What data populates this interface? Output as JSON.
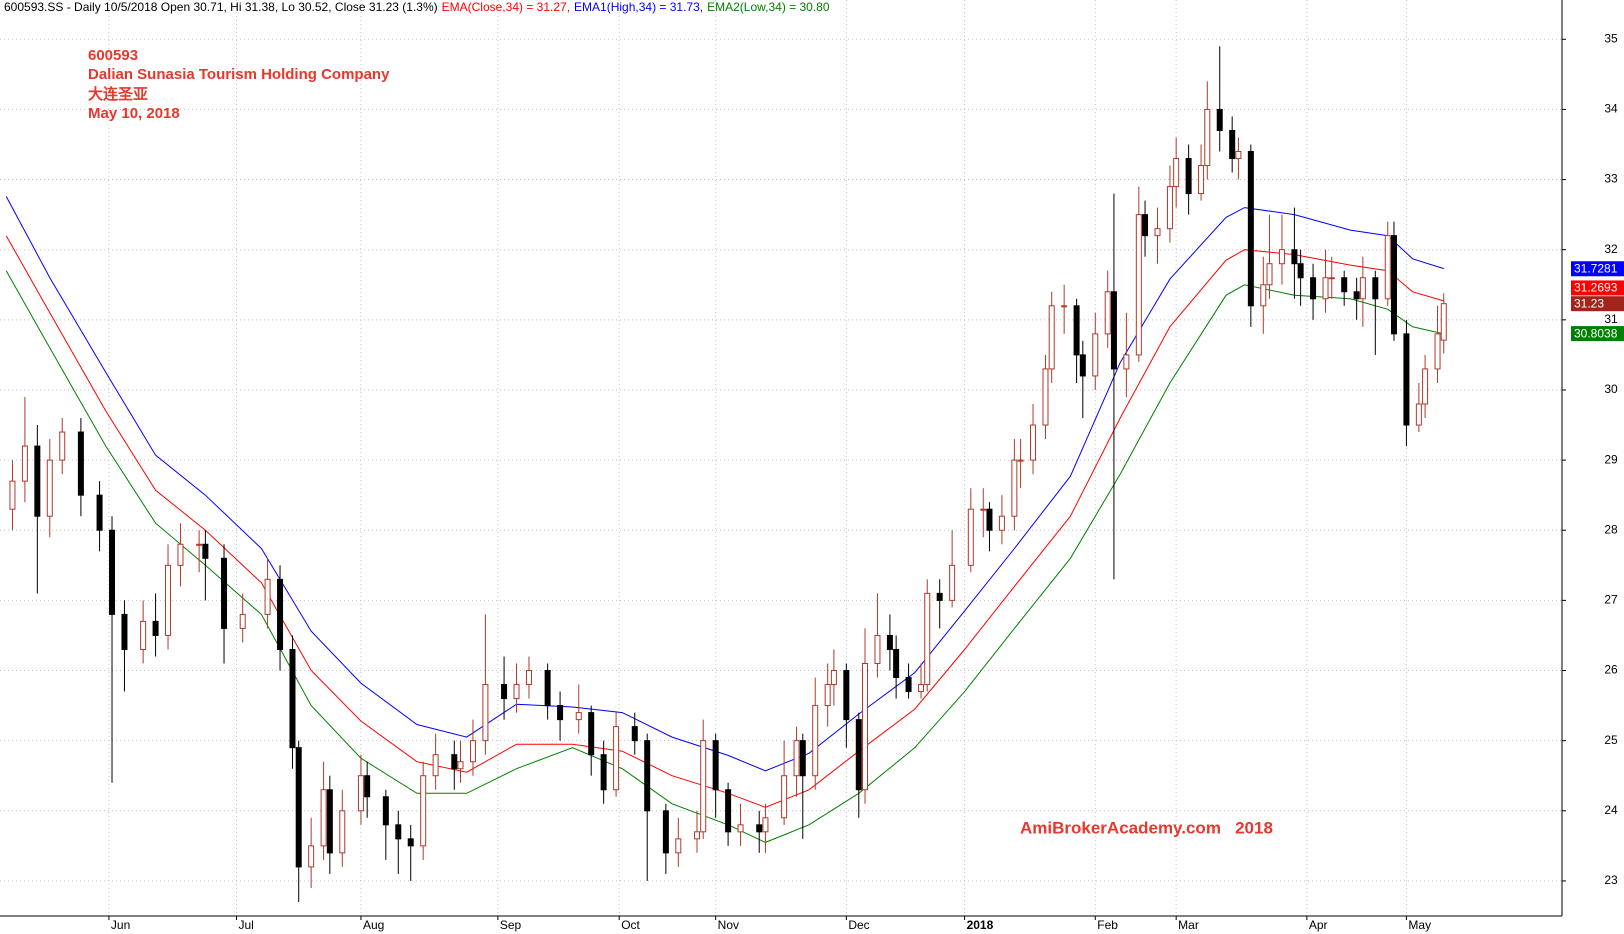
{
  "chart_data": {
    "type": "candlestick",
    "title": "600593.SS - Daily 10/5/2018 Open 30.71, Hi 31.38, Lo 30.52, Close 31.23 (1.3%)",
    "annotations": [
      "600593",
      "Dalian Sunasia Tourism Holding Company",
      "大连圣亚",
      "May 10, 2018"
    ],
    "watermark": "AmiBrokerAcademy.com   2018",
    "grid": true,
    "up_color": "#b0392a",
    "down_color": "#000000",
    "last_color": "#a3241c",
    "xlim": [
      0,
      251
    ],
    "xticks": [
      {
        "value": 17.5,
        "label": "Jun"
      },
      {
        "value": 38,
        "label": "Jul"
      },
      {
        "value": 58,
        "label": "Aug"
      },
      {
        "value": 80,
        "label": "Sep"
      },
      {
        "value": 99.5,
        "label": "Oct"
      },
      {
        "value": 115,
        "label": "Nov"
      },
      {
        "value": 136,
        "label": "Dec"
      },
      {
        "value": 155,
        "label": "2018",
        "bold": true
      },
      {
        "value": 176,
        "label": "Feb"
      },
      {
        "value": 189,
        "label": "Mar"
      },
      {
        "value": 210,
        "label": "Apr"
      },
      {
        "value": 226,
        "label": "May"
      }
    ],
    "ylim": [
      22.5,
      35.56
    ],
    "yticks": [
      23,
      24,
      25,
      26,
      27,
      28,
      29,
      30,
      31,
      32,
      33,
      34,
      35
    ],
    "candles": {
      "x": [
        2,
        4,
        6,
        8,
        10,
        13,
        16,
        18,
        20,
        23,
        25,
        27,
        29,
        32,
        33,
        36,
        39,
        43,
        45,
        47,
        48,
        50,
        52,
        53,
        55,
        58,
        59,
        62,
        64,
        66,
        68,
        70,
        73,
        74,
        76,
        78,
        81,
        83,
        85,
        88,
        90,
        93,
        95,
        97,
        99,
        102,
        104,
        107,
        109,
        112,
        113,
        115,
        117,
        119,
        122,
        123,
        126,
        128,
        129,
        131,
        133,
        134,
        136,
        138,
        139,
        141,
        143,
        144,
        146,
        148,
        149,
        151,
        153,
        156,
        158,
        159,
        161,
        163,
        164,
        166,
        168,
        169,
        171,
        173,
        174,
        176,
        178,
        179,
        181,
        183,
        184,
        186,
        188,
        189,
        191,
        193,
        194,
        196,
        198,
        199,
        201,
        203,
        204,
        206,
        208,
        209,
        211,
        213,
        214,
        216,
        218,
        219,
        221,
        223,
        224,
        226,
        228,
        229,
        231,
        232
      ],
      "open": [
        28.3,
        28.7,
        29.2,
        28.2,
        29.0,
        29.4,
        28.5,
        28.0,
        26.8,
        26.3,
        26.7,
        26.5,
        27.5,
        27.8,
        27.8,
        27.6,
        26.6,
        26.8,
        27.3,
        26.3,
        24.9,
        23.2,
        23.5,
        24.3,
        23.4,
        24.0,
        24.5,
        24.2,
        23.8,
        23.6,
        23.5,
        24.5,
        24.8,
        24.6,
        24.7,
        25.0,
        25.8,
        25.6,
        25.8,
        26.0,
        25.5,
        25.3,
        25.4,
        24.8,
        24.3,
        25.2,
        25.0,
        24.0,
        23.4,
        23.6,
        23.7,
        25.0,
        24.3,
        23.7,
        23.8,
        23.7,
        23.9,
        24.5,
        25.0,
        24.5,
        25.5,
        25.8,
        26.0,
        25.3,
        24.3,
        26.1,
        26.5,
        26.3,
        25.9,
        25.7,
        25.8,
        27.1,
        27.0,
        27.5,
        28.3,
        28.3,
        28.0,
        28.2,
        29.0,
        29.0,
        29.5,
        30.3,
        31.2,
        31.2,
        30.5,
        30.2,
        30.8,
        31.4,
        30.3,
        30.5,
        32.5,
        32.2,
        32.3,
        32.9,
        33.3,
        32.8,
        33.2,
        34.0,
        33.7,
        33.3,
        33.4,
        31.2,
        31.5,
        31.8,
        32.0,
        31.8,
        31.6,
        31.3,
        31.6,
        31.6,
        31.4,
        31.3,
        31.6,
        31.3,
        32.2,
        30.8,
        29.5,
        29.8,
        30.3,
        30.71
      ],
      "high": [
        29.0,
        29.9,
        29.5,
        29.3,
        29.6,
        29.6,
        28.7,
        28.2,
        27.0,
        27.0,
        27.1,
        27.8,
        28.1,
        28.0,
        28.0,
        27.8,
        27.1,
        27.6,
        27.5,
        26.5,
        25.0,
        23.9,
        24.7,
        24.5,
        24.3,
        24.8,
        24.7,
        24.3,
        24.0,
        23.8,
        24.7,
        25.1,
        25.0,
        25.0,
        25.3,
        26.8,
        26.2,
        26.1,
        26.2,
        26.1,
        25.7,
        25.8,
        25.5,
        25.0,
        25.4,
        25.4,
        25.1,
        24.1,
        23.9,
        24.0,
        25.3,
        25.1,
        24.4,
        24.1,
        24.0,
        24.1,
        25.0,
        25.2,
        25.1,
        25.9,
        26.1,
        26.3,
        26.1,
        25.4,
        26.6,
        27.1,
        26.8,
        26.5,
        26.1,
        26.1,
        27.3,
        27.3,
        28.0,
        28.6,
        28.6,
        28.4,
        28.5,
        29.3,
        29.3,
        29.8,
        30.5,
        31.4,
        31.5,
        31.3,
        30.7,
        31.1,
        31.7,
        32.8,
        31.1,
        32.9,
        32.7,
        32.6,
        33.2,
        33.6,
        33.5,
        33.5,
        34.4,
        34.9,
        33.9,
        33.6,
        33.5,
        31.9,
        32.5,
        32.5,
        32.6,
        32.0,
        31.8,
        32.0,
        31.9,
        31.7,
        31.6,
        31.9,
        31.7,
        32.4,
        32.4,
        31.0,
        30.1,
        30.5,
        31.2,
        31.38
      ],
      "low": [
        28.0,
        28.4,
        27.1,
        27.9,
        28.8,
        28.2,
        27.7,
        24.4,
        25.7,
        26.1,
        26.2,
        26.3,
        27.2,
        27.4,
        27.0,
        26.1,
        26.4,
        26.6,
        26.0,
        24.6,
        22.7,
        22.9,
        23.3,
        23.1,
        23.2,
        23.8,
        23.9,
        23.3,
        23.1,
        23.0,
        23.3,
        24.3,
        24.3,
        24.4,
        24.5,
        24.8,
        25.3,
        25.4,
        25.6,
        25.3,
        25.0,
        25.1,
        24.5,
        24.1,
        24.2,
        24.8,
        23.0,
        23.1,
        23.2,
        23.4,
        23.6,
        23.9,
        23.5,
        23.5,
        23.4,
        23.4,
        23.8,
        24.2,
        23.6,
        24.3,
        25.2,
        25.5,
        24.9,
        23.9,
        24.1,
        25.9,
        26.0,
        25.6,
        25.6,
        25.6,
        25.7,
        26.6,
        26.9,
        27.4,
        27.9,
        27.7,
        27.8,
        28.0,
        28.6,
        28.8,
        29.3,
        30.1,
        30.8,
        30.1,
        29.6,
        30.0,
        30.6,
        27.3,
        29.9,
        30.4,
        31.9,
        31.8,
        32.1,
        32.6,
        32.5,
        32.7,
        33.0,
        33.4,
        33.1,
        33.0,
        30.9,
        30.8,
        31.3,
        31.5,
        31.3,
        31.2,
        31.0,
        31.1,
        31.3,
        31.2,
        31.0,
        30.9,
        30.5,
        31.2,
        30.7,
        29.2,
        29.4,
        29.6,
        30.1,
        30.52
      ],
      "close": [
        28.7,
        29.2,
        28.2,
        29.0,
        29.4,
        28.5,
        28.0,
        26.8,
        26.3,
        26.7,
        26.5,
        27.5,
        27.8,
        27.8,
        27.6,
        26.6,
        26.8,
        27.3,
        26.3,
        24.9,
        23.2,
        23.5,
        24.3,
        23.4,
        24.0,
        24.5,
        24.2,
        23.8,
        23.6,
        23.5,
        24.5,
        24.8,
        24.6,
        24.7,
        25.0,
        25.8,
        25.6,
        25.8,
        26.0,
        25.5,
        25.3,
        25.4,
        24.8,
        24.3,
        25.2,
        25.0,
        24.0,
        23.4,
        23.6,
        23.7,
        25.0,
        24.3,
        23.7,
        23.8,
        23.7,
        23.9,
        24.5,
        25.0,
        24.5,
        25.5,
        25.8,
        26.0,
        25.3,
        24.3,
        26.1,
        26.5,
        26.3,
        25.9,
        25.7,
        25.8,
        27.1,
        27.0,
        27.5,
        28.3,
        28.3,
        28.0,
        28.2,
        29.0,
        29.0,
        29.5,
        30.3,
        31.2,
        31.2,
        30.5,
        30.2,
        30.8,
        31.4,
        30.3,
        30.5,
        32.5,
        32.2,
        32.3,
        32.9,
        33.3,
        32.8,
        33.2,
        34.0,
        33.7,
        33.3,
        33.4,
        31.2,
        31.5,
        31.8,
        32.0,
        31.8,
        31.6,
        31.3,
        31.6,
        31.6,
        31.4,
        31.3,
        31.6,
        31.3,
        32.2,
        30.8,
        29.5,
        29.8,
        30.3,
        30.8,
        31.23
      ]
    },
    "series": [
      {
        "name": "EMA(Close,34) = 31.27,",
        "color": "#ff0000",
        "axis_label": 31.2693,
        "x": [
          1,
          8,
          17,
          25,
          33,
          42,
          50,
          58,
          67,
          75,
          83,
          92,
          100,
          108,
          117,
          123,
          130,
          138,
          147,
          155,
          163,
          172,
          180,
          188,
          197,
          200,
          208,
          217,
          223,
          227,
          232
        ],
        "values": [
          32.2,
          31.1,
          29.7,
          28.57,
          28.0,
          27.25,
          26.0,
          25.28,
          24.7,
          24.55,
          24.95,
          24.95,
          24.85,
          24.5,
          24.25,
          24.05,
          24.3,
          24.85,
          25.45,
          26.3,
          27.2,
          28.2,
          29.6,
          30.9,
          31.85,
          32.0,
          31.93,
          31.78,
          31.7,
          31.4,
          31.27
        ]
      },
      {
        "name": "EMA1(High,34) = 31.73,",
        "color": "#0000ff",
        "axis_label": 31.7281,
        "x": [
          1,
          8,
          17,
          25,
          33,
          42,
          50,
          58,
          67,
          75,
          83,
          92,
          100,
          108,
          117,
          123,
          130,
          138,
          147,
          155,
          163,
          172,
          180,
          188,
          197,
          200,
          208,
          217,
          223,
          227,
          232
        ],
        "values": [
          32.76,
          31.6,
          30.25,
          29.07,
          28.5,
          27.74,
          26.56,
          25.82,
          25.23,
          25.05,
          25.52,
          25.48,
          25.4,
          25.05,
          24.79,
          24.57,
          24.82,
          25.38,
          25.97,
          26.85,
          27.74,
          28.77,
          30.39,
          31.58,
          32.46,
          32.6,
          32.5,
          32.28,
          32.2,
          31.87,
          31.73
        ]
      },
      {
        "name": "EMA2(Low,34) = 30.80",
        "color": "#008000",
        "axis_label": 30.8038,
        "x": [
          1,
          8,
          17,
          25,
          33,
          42,
          50,
          58,
          67,
          75,
          83,
          92,
          100,
          108,
          117,
          123,
          130,
          138,
          147,
          155,
          163,
          172,
          180,
          188,
          197,
          200,
          208,
          217,
          223,
          227,
          232
        ],
        "values": [
          31.7,
          30.6,
          29.2,
          28.1,
          27.5,
          26.8,
          25.5,
          24.75,
          24.25,
          24.25,
          24.6,
          24.9,
          24.6,
          24.1,
          23.8,
          23.55,
          23.8,
          24.25,
          24.9,
          25.7,
          26.6,
          27.6,
          28.8,
          30.1,
          31.35,
          31.5,
          31.35,
          31.3,
          31.15,
          30.9,
          30.8
        ]
      }
    ]
  }
}
